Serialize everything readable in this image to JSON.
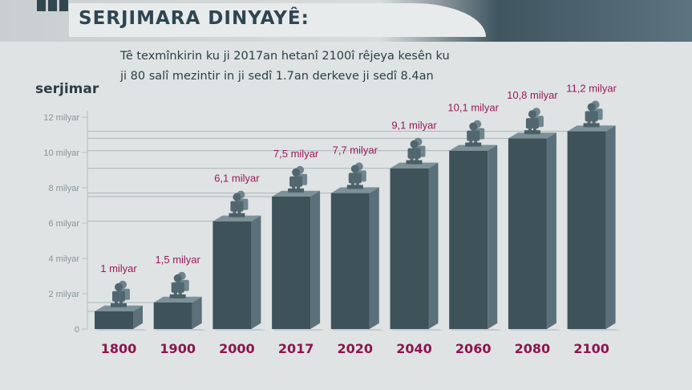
{
  "header": {
    "title": "SERJIMARA DINYAYÊ:"
  },
  "subtitle": "Tê texmînkirin ku ji 2017an hetanî 2100î rêjeya kesên ku ji 80 salî mezintir in ji sedî 1.7an derkeve ji sedî 8.4an",
  "chart_data": {
    "type": "bar",
    "title": "SERJIMARA DINYAYÊ:",
    "ylabel": "serjimar",
    "xlabel": "",
    "categories": [
      "1800",
      "1900",
      "2000",
      "2017",
      "2020",
      "2040",
      "2060",
      "2080",
      "2100"
    ],
    "values": [
      1,
      1.5,
      6.1,
      7.5,
      7.7,
      9.1,
      10.1,
      10.8,
      11.2
    ],
    "data_labels": [
      "1 milyar",
      "1,5 milyar",
      "6,1 milyar",
      "7,5 milyar",
      "7,7 milyar",
      "9,1 milyar",
      "10,1 milyar",
      "10,8 milyar",
      "11,2 milyar"
    ],
    "yticks": [
      0,
      2,
      4,
      6,
      8,
      10,
      12
    ],
    "ytick_labels": [
      "0",
      "2 milyar",
      "4 milyar",
      "6 milyar",
      "8 milyar",
      "10 milyar",
      "12 milyar"
    ],
    "ylim": [
      0,
      12
    ],
    "grid": true,
    "colors": {
      "bar_front": "#3e525a",
      "bar_side": "#5b707a",
      "bar_top": "#7d9199",
      "figure": "#51676f",
      "label": "#9a1a5c",
      "category": "#8c1550",
      "axis_text": "#8a9599"
    }
  }
}
